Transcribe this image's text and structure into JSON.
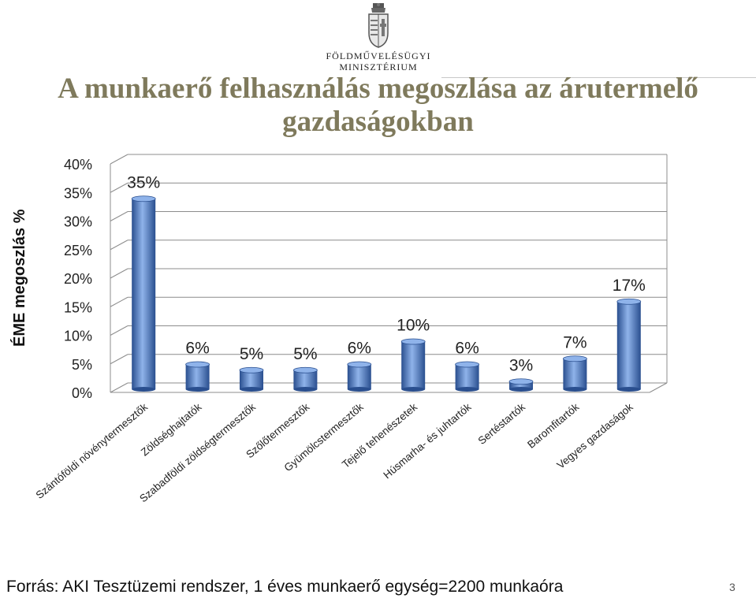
{
  "header": {
    "ministry_line1": "Földművelésügyi",
    "ministry_line2": "Minisztérium"
  },
  "slide": {
    "title_line1": "A munkaerő felhasználás megoszlása az árutermelő",
    "title_line2": "gazdaságokban",
    "footer": "Forrás: AKI Tesztüzemi rendszer, 1 éves munkaerő egység=2200 munkaóra",
    "page_number": "3"
  },
  "chart_data": {
    "type": "bar",
    "title": "",
    "xlabel": "",
    "ylabel": "ÉME megoszlás %",
    "ylim": [
      0,
      40
    ],
    "yticks": [
      "0%",
      "5%",
      "10%",
      "15%",
      "20%",
      "25%",
      "30%",
      "35%",
      "40%"
    ],
    "grid": true,
    "categories": [
      "Szántóföldi növénytermesztők",
      "Zöldséghajtatók",
      "Szabadföldi zöldségtermesztők",
      "Szőlőtermesztők",
      "Gyümölcstermesztők",
      "Tejelő tehenészetek",
      "Húsmarha- és juhtartók",
      "Sertéstartók",
      "Baromfitartók",
      "Vegyes gazdaságok"
    ],
    "values": [
      35,
      6,
      5,
      5,
      6,
      10,
      6,
      3,
      7,
      17
    ],
    "labels": [
      "35%",
      "6%",
      "5%",
      "5%",
      "6%",
      "10%",
      "6%",
      "3%",
      "7%",
      "17%"
    ],
    "colors": {
      "bar": "#4a7ac4",
      "bar_dark": "#2a4f8f",
      "bar_light": "#8fb3ea",
      "grid": "#8c8c8c"
    }
  }
}
